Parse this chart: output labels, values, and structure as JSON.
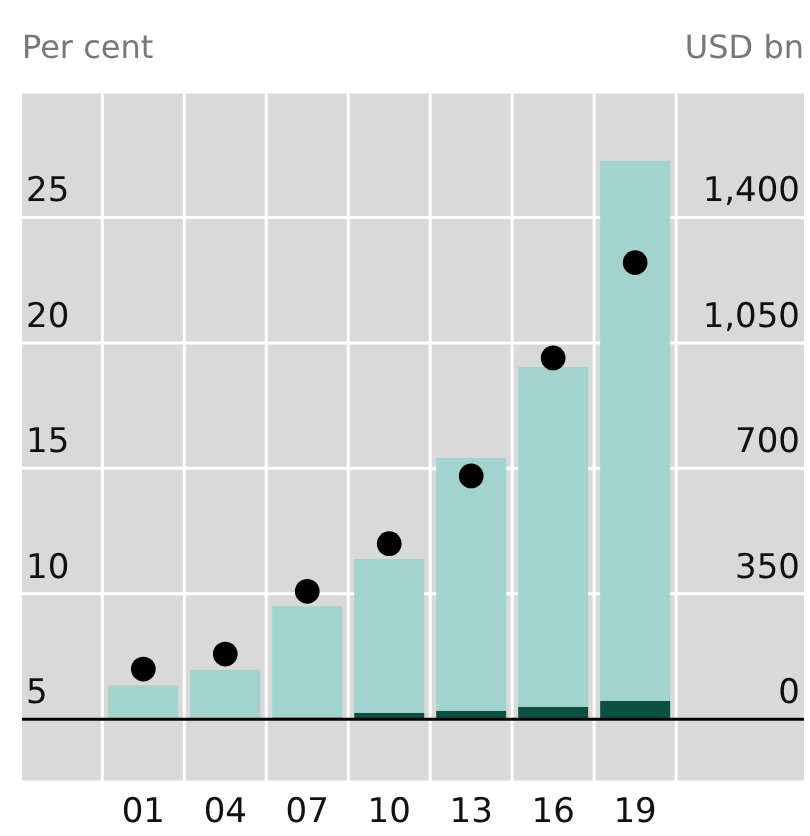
{
  "chart_data": {
    "type": "bar",
    "ylabel": "Per cent",
    "y2label": "USD bn",
    "categories": [
      "01",
      "04",
      "07",
      "10",
      "13",
      "16",
      "19"
    ],
    "stacked": true,
    "series": [
      {
        "axis": "y2",
        "color": "#0b5040",
        "values": [
          1,
          2,
          5,
          18,
          24,
          35,
          51
        ]
      },
      {
        "axis": "y2",
        "color": "#a0d4cc",
        "values": [
          93,
          136,
          310,
          429,
          705,
          948,
          1507
        ]
      },
      {
        "type": "scatter",
        "axis": "y",
        "color": "#000000",
        "marker": "circle",
        "values": [
          7.0,
          7.6,
          10.1,
          12.0,
          14.7,
          19.4,
          23.2
        ]
      }
    ],
    "ylim": [
      2.5,
      30
    ],
    "yticks": [
      5,
      10,
      15,
      20,
      25
    ],
    "y2lim": [
      -175,
      1750
    ],
    "y2ticks": [
      0,
      350,
      700,
      {
        "value": 1050,
        "label": "1,050"
      },
      {
        "value": 1400,
        "label": "1,400"
      }
    ],
    "grid": true,
    "ref_lines": [
      {
        "axis": "y2",
        "value": 0,
        "color": "#000000"
      }
    ]
  }
}
